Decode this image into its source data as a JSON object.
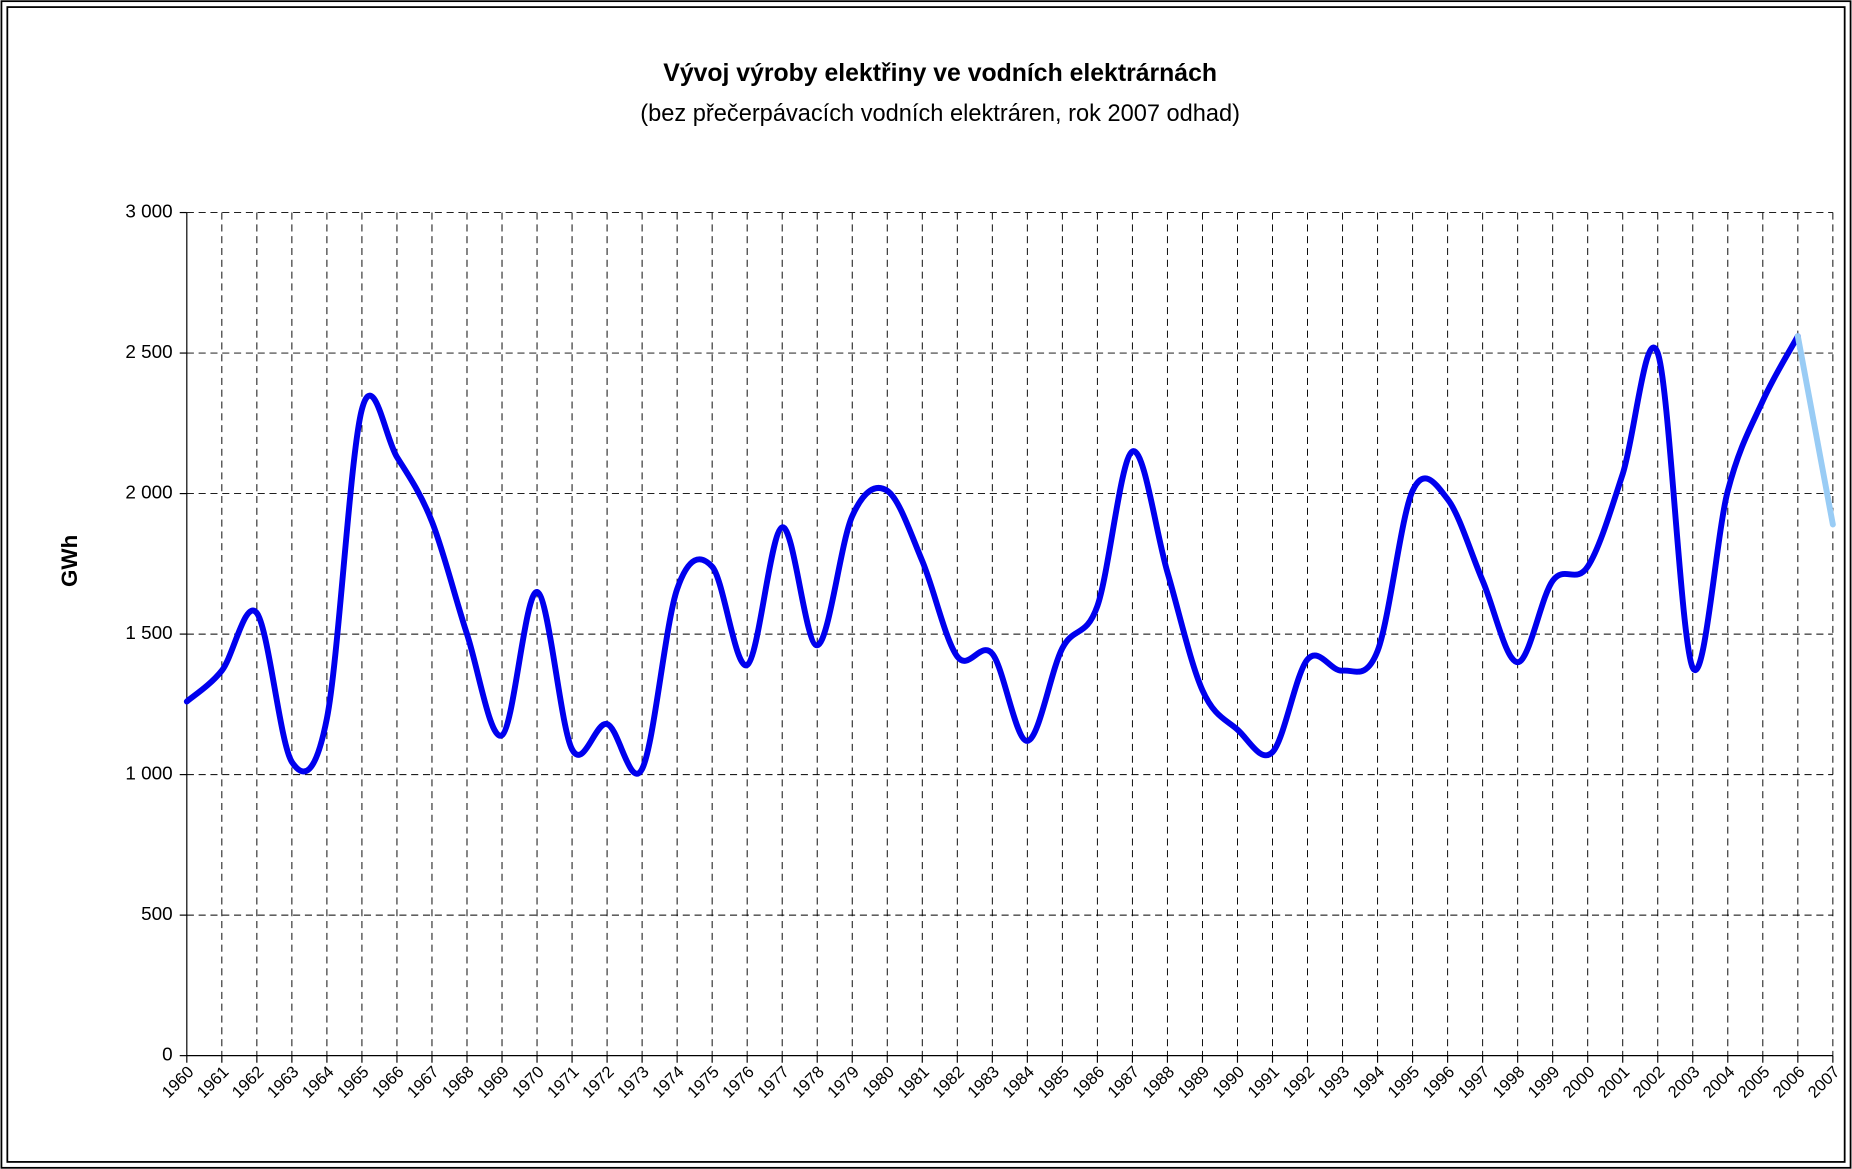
{
  "chart_data": {
    "type": "line",
    "title": "Vývoj výroby elektřiny ve vodních elektrárnách",
    "subtitle": "(bez přečerpávacích vodních elektráren, rok 2007 odhad)",
    "ylabel": "GWh",
    "categories": [
      "1960",
      "1961",
      "1962",
      "1963",
      "1964",
      "1965",
      "1966",
      "1967",
      "1968",
      "1969",
      "1970",
      "1971",
      "1972",
      "1973",
      "1974",
      "1975",
      "1976",
      "1977",
      "1978",
      "1979",
      "1980",
      "1981",
      "1982",
      "1983",
      "1984",
      "1985",
      "1986",
      "1987",
      "1988",
      "1989",
      "1990",
      "1991",
      "1992",
      "1993",
      "1994",
      "1995",
      "1996",
      "1997",
      "1998",
      "1999",
      "2000",
      "2001",
      "2002",
      "2003",
      "2004",
      "2005",
      "2006",
      "2007"
    ],
    "series": [
      {
        "color": "#0000ee",
        "values": [
          1260,
          1370,
          1575,
          1045,
          1200,
          2300,
          2130,
          1900,
          1500,
          1140,
          1650,
          1090,
          1180,
          1020,
          1660,
          1740,
          1390,
          1880,
          1460,
          1920,
          2010,
          1760,
          1420,
          1430,
          1120,
          1450,
          1600,
          2150,
          1720,
          1300,
          1160,
          1080,
          1410,
          1370,
          1440,
          2010,
          1980,
          1690,
          1400,
          1690,
          1740,
          2070,
          2500,
          1380,
          2010,
          2330,
          2560,
          null
        ]
      },
      {
        "color": "#99ccf5",
        "values": [
          null,
          null,
          null,
          null,
          null,
          null,
          null,
          null,
          null,
          null,
          null,
          null,
          null,
          null,
          null,
          null,
          null,
          null,
          null,
          null,
          null,
          null,
          null,
          null,
          null,
          null,
          null,
          null,
          null,
          null,
          null,
          null,
          null,
          null,
          null,
          null,
          null,
          null,
          null,
          null,
          null,
          null,
          null,
          null,
          null,
          null,
          2560,
          1890
        ]
      }
    ],
    "ylim": [
      0,
      3000
    ],
    "yticks": [
      0,
      500,
      {
        "value": 1000,
        "label": "1 000"
      },
      {
        "value": 1500,
        "label": "1 500"
      },
      {
        "value": 2000,
        "label": "2 000"
      },
      {
        "value": 2500,
        "label": "2 500"
      },
      {
        "value": 3000,
        "label": "3 000"
      }
    ],
    "grid": true
  }
}
